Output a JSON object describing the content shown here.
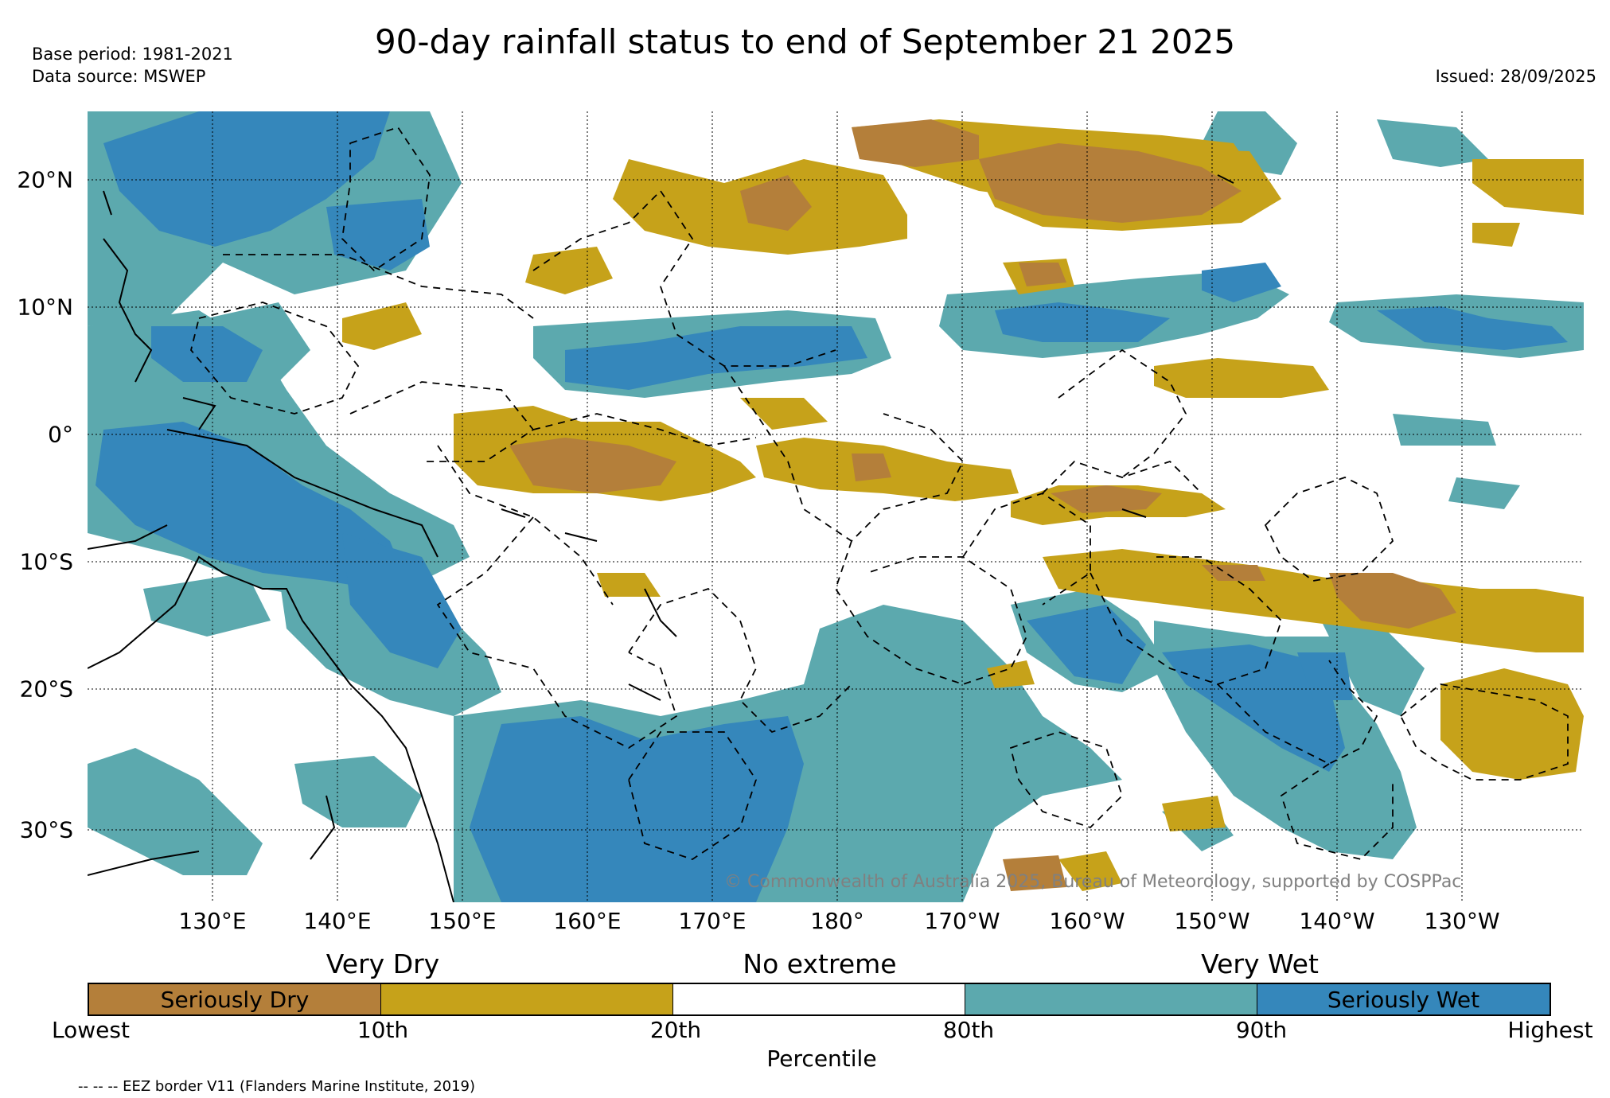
{
  "title": "90-day rainfall status to end of September 21 2025",
  "base_period": "Base period: 1981-2021",
  "data_source": "Data source: MSWEP",
  "issued": "Issued: 28/09/2025",
  "copyright": "© Commonwealth of Australia 2025, Bureau of Meteorology, supported by COSPPac",
  "lon_labels": [
    "130°E",
    "140°E",
    "150°E",
    "160°E",
    "170°E",
    "180°",
    "170°W",
    "160°W",
    "150°W",
    "140°W",
    "130°W"
  ],
  "lat_labels": [
    "20°N",
    "10°N",
    "0°",
    "10°S",
    "20°S",
    "30°S"
  ],
  "legend": {
    "categories": [
      "Very Dry",
      "No extreme",
      "Very Wet"
    ],
    "segments": [
      {
        "label": "Seriously Dry",
        "color": "#b47f3a"
      },
      {
        "label": "",
        "color": "#c6a21a"
      },
      {
        "label": "",
        "color": "#ffffff"
      },
      {
        "label": "",
        "color": "#5ca9ae"
      },
      {
        "label": "Seriously Wet",
        "color": "#3587bb"
      }
    ],
    "ticks": [
      "Lowest",
      "10th",
      "20th",
      "80th",
      "90th",
      "Highest"
    ],
    "axis_label": "Percentile"
  },
  "eez_note": "-- -- -- EEZ border V11 (Flanders Marine Institute, 2019)",
  "colors": {
    "seriously_dry": "#b47f3a",
    "very_dry": "#c6a21a",
    "very_wet": "#5ca9ae",
    "seriously_wet": "#3587bb"
  }
}
